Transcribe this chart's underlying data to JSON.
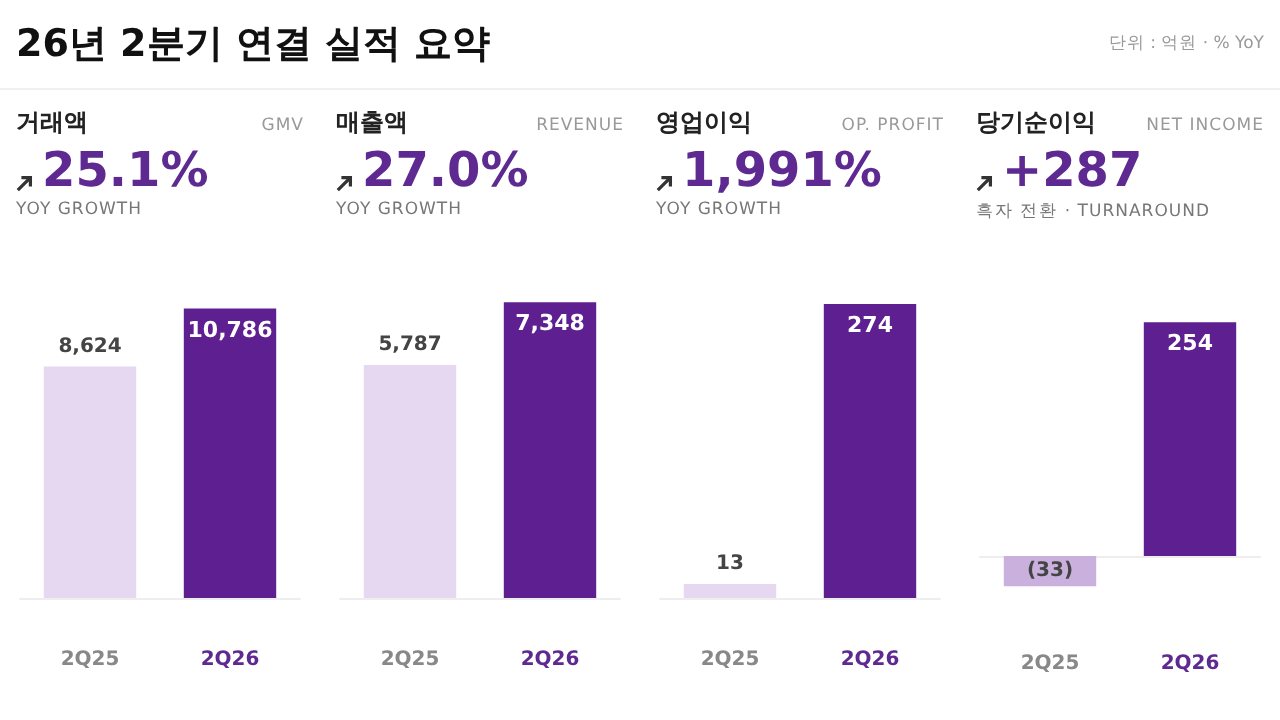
{
  "chart_data": [
    {
      "type": "other",
      "title": "26년 2분기 연결 실적 요약",
      "annotations": [
        "단위 : 억원 · % YoY"
      ]
    },
    {
      "type": "bar",
      "title": "거래액",
      "subtitle": "GMV",
      "annotations": [
        "25.1%",
        "YOY GROWTH"
      ],
      "categories": [
        "2Q25",
        "2Q26"
      ],
      "values": [
        8624,
        10786
      ],
      "value_labels": [
        "8,624",
        "10,786"
      ],
      "colors": [
        "#e6d8f0",
        "#5e1f91"
      ]
    },
    {
      "type": "bar",
      "title": "매출액",
      "subtitle": "REVENUE",
      "annotations": [
        "27.0%",
        "YOY GROWTH"
      ],
      "categories": [
        "2Q25",
        "2Q26"
      ],
      "values": [
        5787,
        7348
      ],
      "value_labels": [
        "5,787",
        "7,348"
      ],
      "colors": [
        "#e6d8f0",
        "#5e1f91"
      ]
    },
    {
      "type": "bar",
      "title": "영업이익",
      "subtitle": "OP. PROFIT",
      "annotations": [
        "1,991%",
        "YOY GROWTH"
      ],
      "categories": [
        "2Q25",
        "2Q26"
      ],
      "values": [
        13,
        274
      ],
      "value_labels": [
        "13",
        "274"
      ],
      "colors": [
        "#e6d8f0",
        "#5e1f91"
      ]
    },
    {
      "type": "bar",
      "title": "당기순이익",
      "subtitle": "NET INCOME",
      "annotations": [
        "+287",
        "흑자 전환 · TURNAROUND"
      ],
      "categories": [
        "2Q25",
        "2Q26"
      ],
      "values": [
        -33,
        254
      ],
      "value_labels": [
        "(33)",
        "254"
      ],
      "colors": [
        "#c9b0dd",
        "#5e1f91"
      ]
    }
  ]
}
